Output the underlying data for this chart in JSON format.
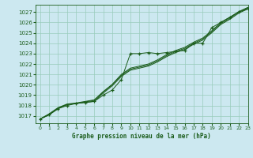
{
  "title": "Graphe pression niveau de la mer (hPa)",
  "xlim": [
    -0.5,
    23
  ],
  "ylim": [
    1016.3,
    1027.7
  ],
  "yticks": [
    1017,
    1018,
    1019,
    1020,
    1021,
    1022,
    1023,
    1024,
    1025,
    1026,
    1027
  ],
  "xticks": [
    0,
    1,
    2,
    3,
    4,
    5,
    6,
    7,
    8,
    9,
    10,
    11,
    12,
    13,
    14,
    15,
    16,
    17,
    18,
    19,
    20,
    21,
    22,
    23
  ],
  "background_color": "#cce8f0",
  "grid_color": "#99ccbb",
  "line_color": "#1a5c1a",
  "series_smooth1": {
    "x": [
      0,
      1,
      2,
      3,
      4,
      5,
      6,
      7,
      8,
      9,
      10,
      11,
      12,
      13,
      14,
      15,
      16,
      17,
      18,
      19,
      20,
      21,
      22,
      23
    ],
    "y": [
      1016.7,
      1017.1,
      1017.7,
      1018.1,
      1018.2,
      1018.3,
      1018.4,
      1019.2,
      1019.9,
      1020.8,
      1021.4,
      1021.6,
      1021.8,
      1022.2,
      1022.7,
      1023.1,
      1023.4,
      1023.9,
      1024.3,
      1025.0,
      1025.8,
      1026.3,
      1026.9,
      1027.3
    ]
  },
  "series_smooth2": {
    "x": [
      0,
      1,
      2,
      3,
      4,
      5,
      6,
      7,
      8,
      9,
      10,
      11,
      12,
      13,
      14,
      15,
      16,
      17,
      18,
      19,
      20,
      21,
      22,
      23
    ],
    "y": [
      1016.7,
      1017.15,
      1017.75,
      1018.1,
      1018.2,
      1018.35,
      1018.5,
      1019.3,
      1020.0,
      1020.9,
      1021.5,
      1021.7,
      1021.9,
      1022.3,
      1022.8,
      1023.2,
      1023.5,
      1024.0,
      1024.4,
      1025.1,
      1025.9,
      1026.4,
      1027.0,
      1027.4
    ]
  },
  "series_smooth3": {
    "x": [
      0,
      1,
      2,
      3,
      4,
      5,
      6,
      7,
      8,
      9,
      10,
      11,
      12,
      13,
      14,
      15,
      16,
      17,
      18,
      19,
      20,
      21,
      22,
      23
    ],
    "y": [
      1016.7,
      1017.2,
      1017.8,
      1018.15,
      1018.25,
      1018.4,
      1018.55,
      1019.35,
      1020.05,
      1021.0,
      1021.6,
      1021.8,
      1022.0,
      1022.4,
      1022.9,
      1023.3,
      1023.6,
      1024.1,
      1024.5,
      1025.2,
      1026.0,
      1026.5,
      1027.05,
      1027.45
    ]
  },
  "series_marker": {
    "x": [
      0,
      1,
      2,
      3,
      4,
      5,
      6,
      7,
      8,
      9,
      10,
      11,
      12,
      13,
      14,
      15,
      16,
      17,
      18,
      19,
      20,
      21,
      22,
      23
    ],
    "y": [
      1016.7,
      1017.1,
      1017.7,
      1018.0,
      1018.2,
      1018.3,
      1018.4,
      1019.0,
      1019.5,
      1020.5,
      1023.0,
      1023.0,
      1023.1,
      1023.0,
      1023.1,
      1023.2,
      1023.3,
      1024.0,
      1024.0,
      1025.5,
      1026.0,
      1026.5,
      1027.0,
      1027.3
    ]
  }
}
